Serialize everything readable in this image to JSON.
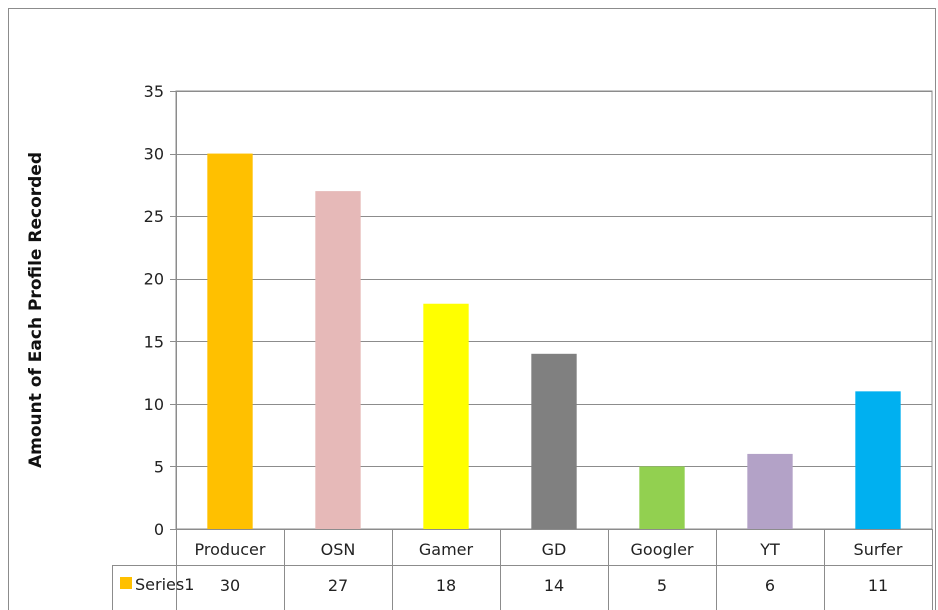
{
  "chart_data": {
    "type": "bar",
    "categories": [
      "Producer",
      "OSN",
      "Gamer",
      "GD",
      "Googler",
      "YT",
      "Surfer"
    ],
    "series": [
      {
        "name": "Series1",
        "values": [
          30,
          27,
          18,
          14,
          5,
          6,
          11
        ],
        "colors": [
          "#ffc000",
          "#e6b9b8",
          "#ffff00",
          "#808080",
          "#92d050",
          "#b3a2c7",
          "#00b0f0"
        ]
      }
    ],
    "title": "",
    "xlabel": "",
    "ylabel": "Amount of Each Profile Recorded",
    "ylim": [
      0,
      35
    ],
    "yticks": [
      0,
      5,
      10,
      15,
      20,
      25,
      30,
      35
    ],
    "grid": true,
    "data_table": true,
    "legend_key_color": "#ffc000"
  }
}
